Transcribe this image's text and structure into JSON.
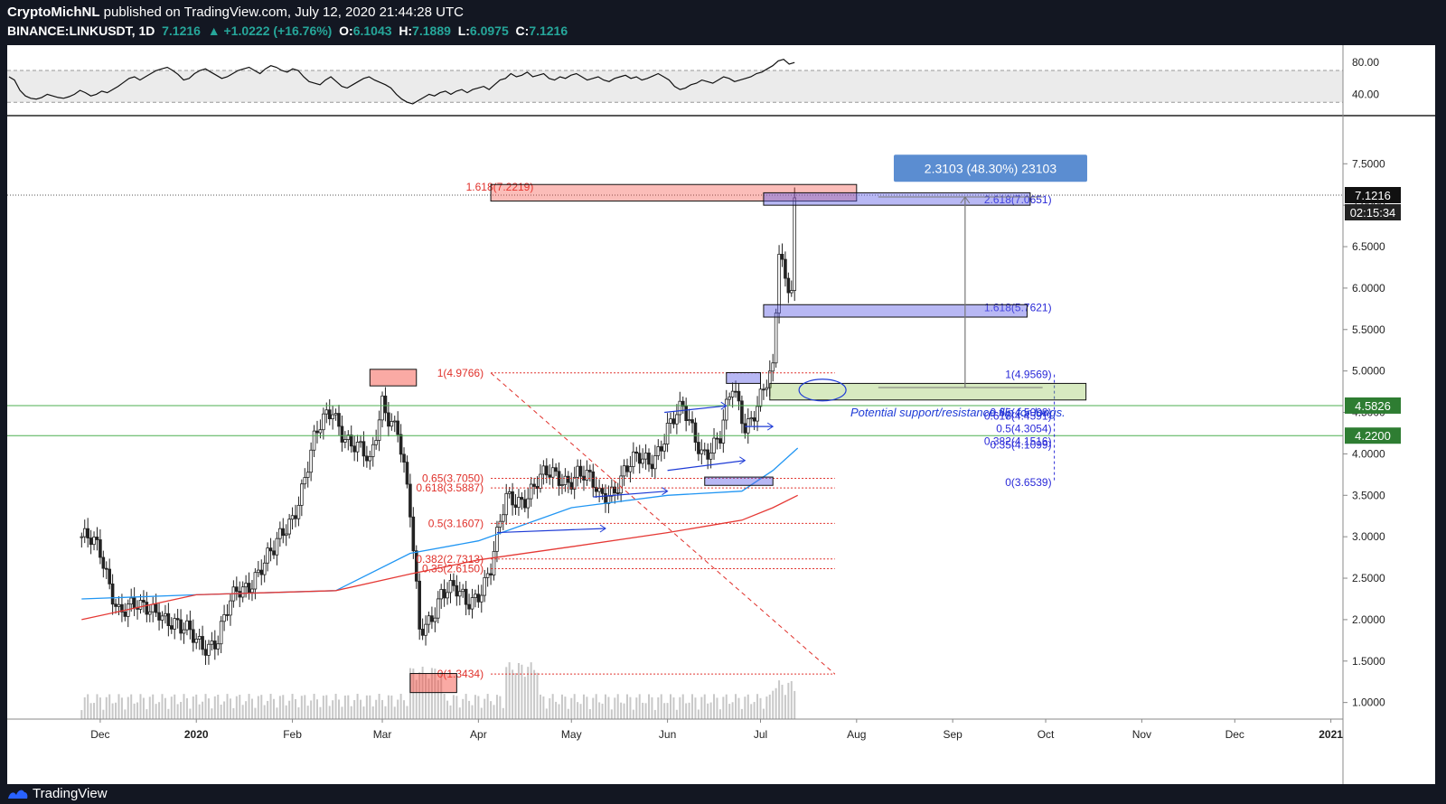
{
  "header": {
    "author": "CryptoMichNL",
    "published_text": " published on TradingView.com, July 12, 2020 21:44:28 UTC",
    "symbol": "BINANCE:LINKUSDT, 1D",
    "last": "7.1216",
    "change": "▲ +1.0222 (+16.76%)",
    "o_label": "O:",
    "o": "6.1043",
    "h_label": "H:",
    "h": "7.1889",
    "l_label": "L:",
    "l": "6.0975",
    "c_label": "C:",
    "c": "7.1216"
  },
  "footer": {
    "brand": "TradingView"
  },
  "colors": {
    "up": "#26a69a",
    "bg_dark": "#131722",
    "fib_red": "#e0312b",
    "fib_blue": "#2a2ad8",
    "ma_blue": "#2196f3",
    "ma_red": "#e53935",
    "zone_green": "#4caf50"
  },
  "chart_data": {
    "type": "candlestick",
    "symbol": "BINANCE:LINKUSDT",
    "timeframe": "1D",
    "x_tick_labels": [
      "Dec",
      "2020",
      "Feb",
      "Mar",
      "Apr",
      "May",
      "Jun",
      "Jul",
      "Aug",
      "Sep",
      "Oct",
      "Nov",
      "Dec",
      "2021"
    ],
    "y_ticks": [
      1.0,
      1.5,
      2.0,
      2.5,
      3.0,
      3.5,
      4.0,
      4.5,
      5.0,
      5.5,
      6.0,
      6.5,
      7.0,
      7.5
    ],
    "y_tick_labels": [
      "1.0000",
      "1.5000",
      "2.0000",
      "2.5000",
      "3.0000",
      "3.5000",
      "4.0000",
      "4.5000",
      "5.0000",
      "5.5000",
      "6.0000",
      "6.5000",
      "7.0000",
      "7.5000"
    ],
    "ylim": [
      0.8,
      7.95
    ],
    "price_series": [
      [
        "2019-11-25",
        3.0
      ],
      [
        "2019-12-01",
        2.75
      ],
      [
        "2019-12-07",
        2.2
      ],
      [
        "2019-12-14",
        2.05
      ],
      [
        "2019-12-20",
        2.2
      ],
      [
        "2019-12-27",
        1.8
      ],
      [
        "2020-01-02",
        1.78
      ],
      [
        "2020-01-08",
        1.75
      ],
      [
        "2020-01-14",
        2.3
      ],
      [
        "2020-01-20",
        2.6
      ],
      [
        "2020-01-26",
        2.75
      ],
      [
        "2020-02-01",
        3.3
      ],
      [
        "2020-02-08",
        4.1
      ],
      [
        "2020-02-14",
        4.55
      ],
      [
        "2020-02-20",
        4.15
      ],
      [
        "2020-02-26",
        3.8
      ],
      [
        "2020-03-01",
        4.7
      ],
      [
        "2020-03-06",
        4.3
      ],
      [
        "2020-03-10",
        3.2
      ],
      [
        "2020-03-13",
        1.85
      ],
      [
        "2020-03-20",
        2.35
      ],
      [
        "2020-03-28",
        2.2
      ],
      [
        "2020-04-05",
        2.6
      ],
      [
        "2020-04-10",
        3.4
      ],
      [
        "2020-04-18",
        3.6
      ],
      [
        "2020-04-25",
        3.7
      ],
      [
        "2020-05-03",
        3.8
      ],
      [
        "2020-05-10",
        3.45
      ],
      [
        "2020-05-18",
        3.8
      ],
      [
        "2020-05-26",
        3.9
      ],
      [
        "2020-06-01",
        4.35
      ],
      [
        "2020-06-06",
        4.45
      ],
      [
        "2020-06-12",
        4.1
      ],
      [
        "2020-06-18",
        4.15
      ],
      [
        "2020-06-22",
        4.75
      ],
      [
        "2020-06-26",
        4.4
      ],
      [
        "2020-07-01",
        4.7
      ],
      [
        "2020-07-05",
        4.9
      ],
      [
        "2020-07-07",
        6.4
      ],
      [
        "2020-07-09",
        6.1
      ],
      [
        "2020-07-11",
        6.1
      ],
      [
        "2020-07-12",
        7.12
      ]
    ],
    "price_labels": [
      {
        "value": "7.1216",
        "time": "02:15:34",
        "price": 7.1216
      },
      {
        "value": "4.5826",
        "price": 4.5826
      },
      {
        "value": "4.2200",
        "price": 4.22
      }
    ],
    "moving_averages": [
      {
        "color": "#2196f3",
        "points": [
          [
            "2019-11-25",
            2.25
          ],
          [
            "2020-01-01",
            2.3
          ],
          [
            "2020-02-15",
            2.35
          ],
          [
            "2020-03-10",
            2.8
          ],
          [
            "2020-04-01",
            2.95
          ],
          [
            "2020-05-01",
            3.35
          ],
          [
            "2020-06-01",
            3.5
          ],
          [
            "2020-06-25",
            3.55
          ],
          [
            "2020-07-05",
            3.8
          ],
          [
            "2020-07-13",
            4.07
          ]
        ]
      },
      {
        "color": "#e53935",
        "points": [
          [
            "2019-11-25",
            2.0
          ],
          [
            "2020-01-01",
            2.3
          ],
          [
            "2020-02-15",
            2.35
          ],
          [
            "2020-03-10",
            2.55
          ],
          [
            "2020-04-01",
            2.72
          ],
          [
            "2020-05-01",
            2.88
          ],
          [
            "2020-06-01",
            3.05
          ],
          [
            "2020-06-25",
            3.2
          ],
          [
            "2020-07-05",
            3.35
          ],
          [
            "2020-07-13",
            3.5
          ]
        ]
      }
    ],
    "fib_red": [
      {
        "label": "1.618(7.2219)",
        "price": 7.2219
      },
      {
        "label": "1(4.9766)",
        "price": 4.9766
      },
      {
        "label": "0.65(3.7050)",
        "price": 3.705
      },
      {
        "label": "0.618(3.5887)",
        "price": 3.5887
      },
      {
        "label": "0.5(3.1607)",
        "price": 3.1607
      },
      {
        "label": "0.382(2.7313)",
        "price": 2.7313
      },
      {
        "label": "0.35(2.6150)",
        "price": 2.615
      },
      {
        "label": "0(1.3434)",
        "price": 1.3434
      }
    ],
    "fib_blue": [
      {
        "label": "2.618(7.0651)",
        "price": 7.0651
      },
      {
        "label": "1.618(5.7621)",
        "price": 5.7621
      },
      {
        "label": "1(4.9569)",
        "price": 4.9569
      },
      {
        "label": "0.65(4.5008)",
        "price": 4.5008
      },
      {
        "label": "0.618(4.4591)",
        "price": 4.4591
      },
      {
        "label": "0.5(4.3054)",
        "price": 4.3054
      },
      {
        "label": "0.382(4.1516)",
        "price": 4.1516
      },
      {
        "label": "0.35(4.1099)",
        "price": 4.1099
      },
      {
        "label": "0(3.6539)",
        "price": 3.6539
      }
    ],
    "measure_box": {
      "text": "2.3103 (48.30%) 23103",
      "from": 4.8,
      "to": 7.1
    }
  },
  "rsi": {
    "y_tick_labels": [
      "80.00",
      "40.00"
    ],
    "y_ticks": [
      80,
      40
    ],
    "ylim": [
      20,
      95
    ],
    "band": [
      70,
      30
    ],
    "values": [
      62,
      58,
      45,
      38,
      35,
      34,
      36,
      40,
      38,
      36,
      35,
      37,
      40,
      45,
      42,
      38,
      40,
      44,
      42,
      46,
      50,
      55,
      60,
      62,
      58,
      62,
      66,
      70,
      72,
      74,
      70,
      65,
      58,
      60,
      66,
      70,
      72,
      68,
      64,
      60,
      62,
      66,
      70,
      72,
      74,
      70,
      66,
      72,
      76,
      74,
      70,
      68,
      72,
      70,
      62,
      56,
      54,
      52,
      58,
      62,
      56,
      50,
      48,
      52,
      56,
      60,
      62,
      58,
      55,
      52,
      48,
      40,
      34,
      30,
      28,
      32,
      36,
      40,
      38,
      42,
      44,
      40,
      44,
      46,
      42,
      46,
      48,
      50,
      46,
      52,
      58,
      60,
      66,
      62,
      64,
      68,
      62,
      64,
      66,
      60,
      58,
      62,
      60,
      64,
      66,
      62,
      58,
      60,
      62,
      58,
      56,
      60,
      62,
      64,
      60,
      62,
      58,
      60,
      63,
      66,
      62,
      58,
      50,
      46,
      48,
      52,
      54,
      58,
      56,
      54,
      58,
      62,
      60,
      56,
      58,
      60,
      62,
      66,
      68,
      72,
      76,
      82,
      84,
      78,
      80
    ]
  },
  "annotation": {
    "text": "Potential support/resistance flip for longs."
  }
}
